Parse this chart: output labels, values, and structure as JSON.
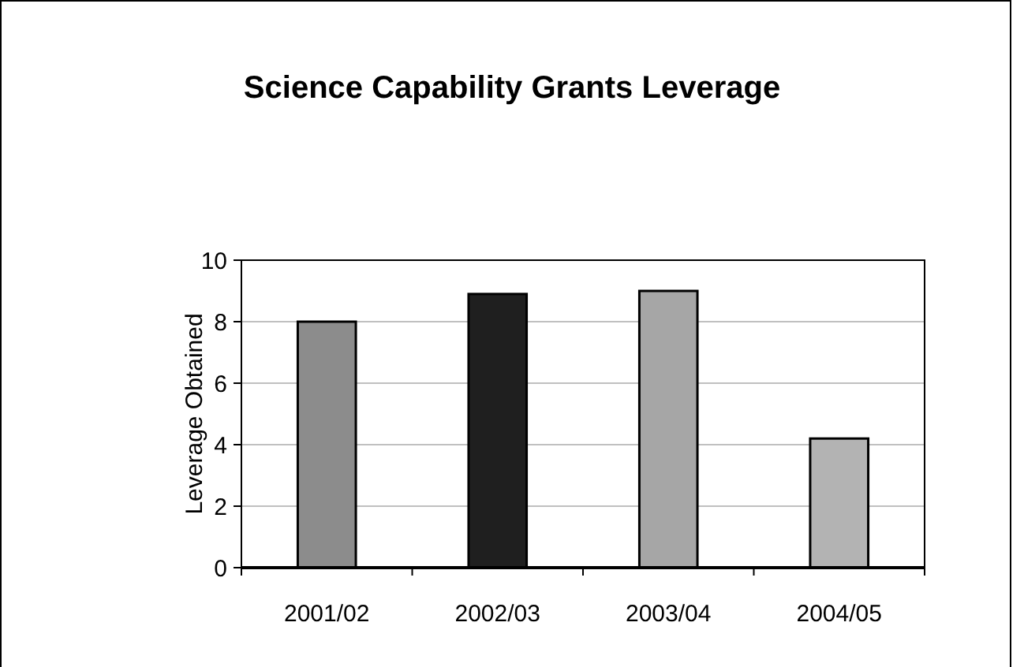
{
  "chart_data": {
    "type": "bar",
    "title": "Science Capability Grants Leverage",
    "ylabel": "Leverage Obtained",
    "categories": [
      "2001/02",
      "2002/03",
      "2003/04",
      "2004/05"
    ],
    "values": [
      8,
      8.9,
      9,
      4.2
    ],
    "colors": [
      "#8c8c8c",
      "#1f1f1f",
      "#a6a6a6",
      "#b3b3b3"
    ],
    "ylim": [
      0,
      10
    ],
    "yticks": [
      0,
      2,
      4,
      6,
      8,
      10
    ],
    "grid": "y"
  }
}
